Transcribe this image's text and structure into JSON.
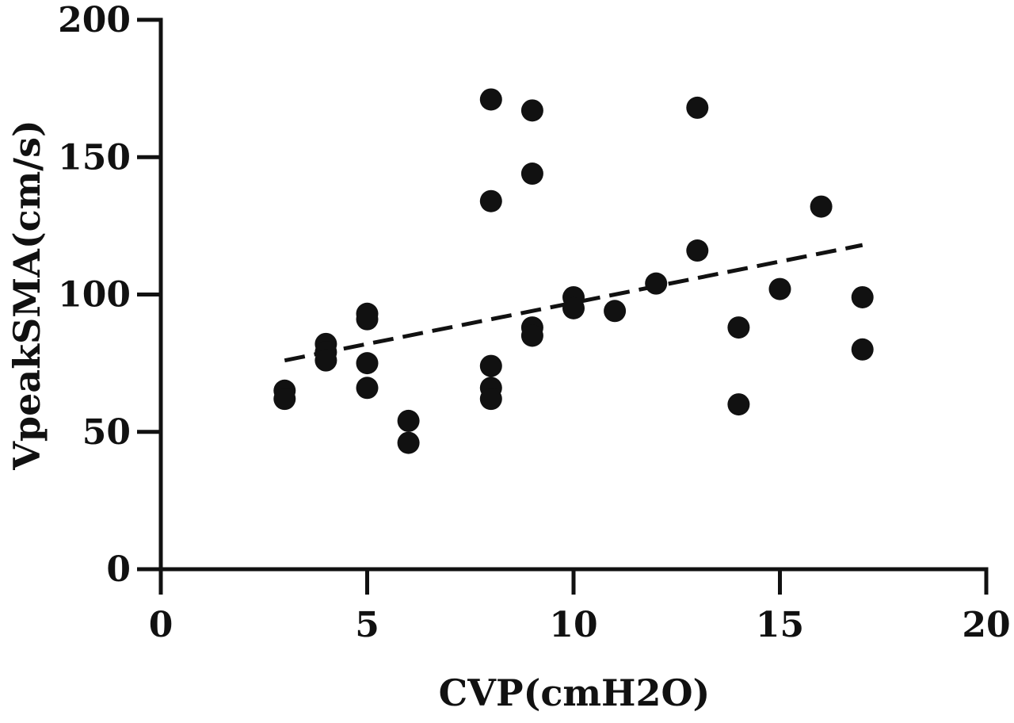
{
  "chart_data": {
    "type": "scatter",
    "title": "",
    "xlabel": "CVP(cmH2O)",
    "ylabel": "VpeakSMA(cm/s)",
    "xlim": [
      0,
      20
    ],
    "ylim": [
      0,
      200
    ],
    "xticks": [
      0,
      5,
      10,
      15,
      20
    ],
    "yticks": [
      0,
      50,
      100,
      150,
      200
    ],
    "grid": false,
    "color": "#111111",
    "points": [
      {
        "x": 3,
        "y": 65
      },
      {
        "x": 3,
        "y": 62
      },
      {
        "x": 4,
        "y": 82
      },
      {
        "x": 4,
        "y": 79
      },
      {
        "x": 4,
        "y": 76
      },
      {
        "x": 5,
        "y": 93
      },
      {
        "x": 5,
        "y": 91
      },
      {
        "x": 5,
        "y": 75
      },
      {
        "x": 5,
        "y": 66
      },
      {
        "x": 6,
        "y": 54
      },
      {
        "x": 6,
        "y": 46
      },
      {
        "x": 8,
        "y": 171
      },
      {
        "x": 8,
        "y": 134
      },
      {
        "x": 8,
        "y": 74
      },
      {
        "x": 8,
        "y": 66
      },
      {
        "x": 8,
        "y": 62
      },
      {
        "x": 9,
        "y": 167
      },
      {
        "x": 9,
        "y": 144
      },
      {
        "x": 9,
        "y": 88
      },
      {
        "x": 9,
        "y": 85
      },
      {
        "x": 10,
        "y": 99
      },
      {
        "x": 10,
        "y": 95
      },
      {
        "x": 11,
        "y": 94
      },
      {
        "x": 12,
        "y": 104
      },
      {
        "x": 13,
        "y": 168
      },
      {
        "x": 13,
        "y": 116
      },
      {
        "x": 14,
        "y": 88
      },
      {
        "x": 14,
        "y": 60
      },
      {
        "x": 15,
        "y": 102
      },
      {
        "x": 16,
        "y": 132
      },
      {
        "x": 17,
        "y": 99
      },
      {
        "x": 17,
        "y": 80
      }
    ],
    "trendline": {
      "x1": 3,
      "y1": 76,
      "x2": 17,
      "y2": 118,
      "style": "dashed"
    }
  }
}
